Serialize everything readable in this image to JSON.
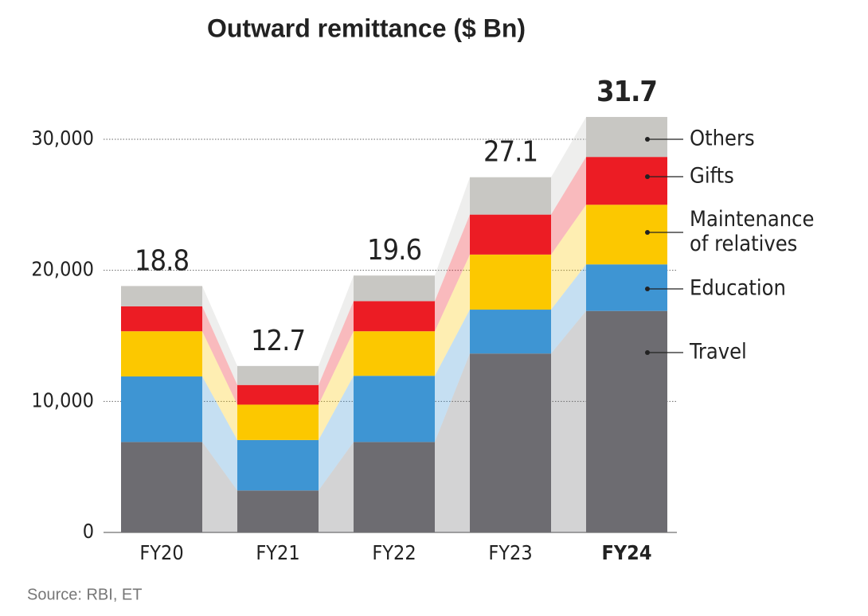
{
  "chart_data": {
    "type": "stacked_bar",
    "title": "Outward remittance ($ Bn)",
    "categories": [
      "FY20",
      "FY21",
      "FY22",
      "FY23",
      "FY24"
    ],
    "series": [
      {
        "name": "Travel",
        "color": "#6d6c71",
        "values": [
          6900,
          3200,
          6900,
          13650,
          16900
        ]
      },
      {
        "name": "Education",
        "color": "#3e95d3",
        "values": [
          5000,
          3850,
          5050,
          3350,
          3550
        ]
      },
      {
        "name": "Maintenance of relatives",
        "color": "#fcc800",
        "values": [
          3450,
          2700,
          3400,
          4200,
          4550
        ]
      },
      {
        "name": "Gifts",
        "color": "#ec1c24",
        "values": [
          1900,
          1500,
          2300,
          3050,
          3650
        ]
      },
      {
        "name": "Others",
        "color": "#c8c7c3",
        "values": [
          1550,
          1450,
          1950,
          2850,
          3050
        ]
      }
    ],
    "totals": {
      "values": [
        18800,
        12700,
        19600,
        27100,
        31700
      ],
      "value_labels": [
        "18.8",
        "12.7",
        "19.6",
        "27.1",
        "31.7"
      ]
    },
    "ylim": [
      0,
      32000
    ],
    "yticks": [
      0,
      {
        "value": 10000,
        "label": "10,000"
      },
      {
        "value": 20000,
        "label": "20,000"
      },
      {
        "value": 30000,
        "label": "30,000"
      }
    ],
    "grid": true,
    "source": "Source: RBI, ET"
  }
}
